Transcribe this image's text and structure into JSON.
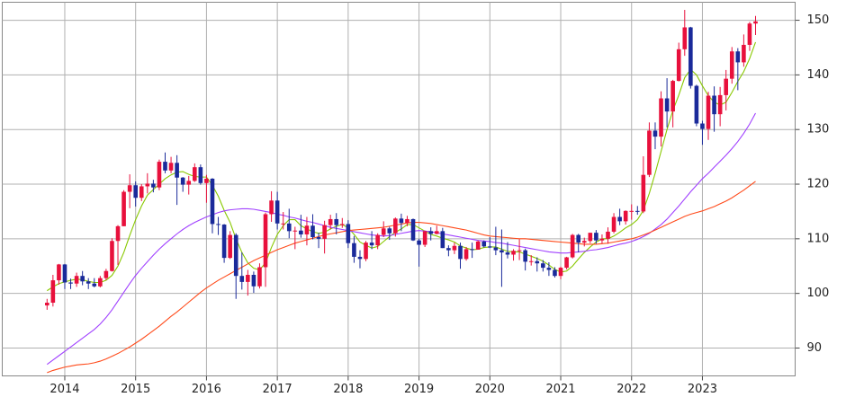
{
  "chart_data": {
    "type": "candlestick",
    "categories": [
      null,
      null,
      null,
      "2014",
      null,
      null,
      null,
      null,
      null,
      null,
      null,
      null,
      null,
      null,
      null,
      "2015",
      null,
      null,
      null,
      null,
      null,
      null,
      null,
      null,
      null,
      null,
      null,
      "2016",
      null,
      null,
      null,
      null,
      null,
      null,
      null,
      null,
      null,
      null,
      null,
      "2017",
      null,
      null,
      null,
      null,
      null,
      null,
      null,
      null,
      null,
      null,
      null,
      "2018",
      null,
      null,
      null,
      null,
      null,
      null,
      null,
      null,
      null,
      null,
      null,
      "2019",
      null,
      null,
      null,
      null,
      null,
      null,
      null,
      null,
      null,
      null,
      null,
      "2020",
      null,
      null,
      null,
      null,
      null,
      null,
      null,
      null,
      null,
      null,
      null,
      "2021",
      null,
      null,
      null,
      null,
      null,
      null,
      null,
      null,
      null,
      null,
      null,
      "2022",
      null,
      null,
      null,
      null,
      null,
      null,
      null,
      null,
      null,
      null,
      null,
      "2023",
      null,
      null,
      null,
      null,
      null,
      null,
      null,
      null,
      null
    ],
    "open": [
      97.8,
      98.3,
      102.4,
      105.3,
      102.0,
      101.8,
      103.2,
      102.2,
      101.8,
      101.3,
      102.8,
      104.1,
      109.6,
      112.3,
      118.6,
      119.8,
      117.5,
      119.6,
      120.1,
      119.4,
      124.1,
      122.5,
      123.9,
      121.2,
      119.9,
      120.6,
      123.1,
      120.2,
      121.0,
      112.7,
      112.6,
      106.5,
      110.7,
      103.2,
      102.1,
      103.4,
      101.3,
      104.8,
      114.5,
      117.0,
      112.8,
      112.8,
      111.4,
      111.5,
      110.8,
      112.4,
      110.3,
      110.0,
      112.5,
      113.6,
      112.5,
      112.7,
      109.2,
      106.7,
      106.3,
      109.3,
      108.8,
      110.7,
      111.9,
      111.0,
      113.7,
      112.9,
      113.6,
      109.7,
      108.9,
      111.4,
      110.9,
      111.4,
      108.3,
      107.9,
      108.7,
      106.3,
      108.1,
      108.0,
      109.5,
      108.6,
      108.4,
      107.9,
      107.5,
      107.1,
      107.8,
      107.9,
      105.8,
      105.9,
      105.5,
      104.7,
      104.3,
      103.2,
      104.7,
      106.6,
      110.7,
      109.3,
      109.6,
      111.1,
      109.7,
      110.0,
      111.3,
      114.0,
      113.2,
      115.1,
      115.1,
      115.0,
      121.7,
      129.8,
      128.7,
      135.7,
      133.3,
      138.9,
      144.7,
      148.7,
      138.0,
      131.1,
      130.1,
      136.2,
      132.8,
      136.3,
      139.3,
      144.3,
      142.3,
      145.5,
      149.4
    ],
    "high": [
      99.0,
      103.4,
      105.4,
      105.4,
      102.7,
      103.8,
      104.1,
      102.8,
      102.8,
      103.2,
      104.5,
      110.1,
      112.5,
      118.9,
      121.8,
      120.5,
      120.0,
      122.0,
      120.8,
      124.5,
      125.8,
      125.0,
      125.3,
      121.3,
      121.5,
      123.8,
      123.6,
      121.7,
      121.1,
      114.0,
      112.7,
      111.4,
      111.0,
      107.5,
      104.3,
      104.0,
      105.5,
      114.8,
      118.7,
      118.6,
      114.9,
      115.5,
      112.2,
      114.4,
      114.0,
      114.5,
      111.1,
      113.3,
      114.4,
      114.7,
      113.8,
      113.4,
      110.5,
      107.9,
      109.6,
      111.4,
      111.0,
      113.2,
      112.2,
      113.9,
      114.6,
      114.2,
      113.7,
      110.0,
      111.5,
      112.1,
      112.4,
      112.0,
      108.8,
      109.3,
      109.3,
      108.5,
      109.3,
      109.7,
      109.7,
      110.3,
      112.2,
      111.7,
      109.4,
      108.1,
      109.9,
      108.2,
      107.0,
      106.6,
      106.1,
      105.7,
      104.8,
      104.9,
      106.7,
      110.9,
      110.9,
      110.2,
      111.1,
      111.6,
      110.8,
      112.1,
      114.7,
      115.5,
      115.2,
      116.3,
      116.0,
      125.1,
      131.3,
      131.3,
      137.0,
      139.4,
      139.1,
      145.9,
      151.9,
      148.8,
      138.2,
      131.6,
      136.9,
      137.9,
      137.8,
      140.9,
      145.1,
      144.9,
      147.4,
      149.7,
      150.8
    ],
    "low": [
      97.0,
      97.6,
      101.6,
      100.8,
      100.8,
      101.2,
      101.5,
      100.8,
      101.1,
      101.1,
      102.4,
      104.0,
      105.2,
      112.3,
      115.6,
      115.9,
      116.9,
      118.3,
      118.5,
      118.9,
      122.0,
      122.0,
      116.2,
      118.6,
      118.1,
      120.4,
      119.9,
      116.6,
      111.0,
      110.7,
      105.6,
      106.3,
      99.0,
      100.7,
      99.6,
      100.1,
      100.9,
      101.2,
      113.1,
      111.7,
      111.7,
      110.1,
      108.1,
      110.2,
      108.8,
      109.9,
      108.3,
      107.3,
      111.7,
      110.8,
      112.0,
      108.3,
      105.6,
      104.6,
      105.9,
      108.1,
      108.1,
      110.3,
      109.8,
      110.4,
      111.4,
      112.3,
      109.6,
      104.9,
      108.5,
      109.7,
      110.8,
      108.3,
      106.8,
      107.2,
      104.5,
      106.0,
      106.5,
      108.2,
      108.4,
      108.3,
      107.0,
      101.2,
      106.4,
      106.0,
      106.1,
      104.2,
      105.1,
      104.0,
      104.0,
      103.2,
      102.9,
      102.6,
      104.4,
      106.4,
      107.5,
      108.6,
      109.2,
      109.1,
      109.1,
      109.1,
      111.0,
      112.5,
      112.6,
      113.5,
      114.4,
      114.7,
      121.3,
      126.4,
      126.9,
      130.4,
      130.4,
      138.8,
      143.5,
      137.5,
      130.6,
      127.2,
      128.1,
      129.6,
      130.6,
      133.5,
      138.4,
      137.2,
      141.5,
      144.4,
      147.3
    ],
    "close": [
      98.3,
      102.4,
      105.3,
      102.0,
      101.8,
      103.2,
      102.2,
      101.8,
      101.3,
      102.8,
      104.1,
      109.6,
      112.3,
      118.6,
      119.8,
      117.5,
      119.6,
      120.1,
      119.4,
      124.1,
      122.5,
      123.9,
      121.2,
      119.9,
      120.6,
      123.1,
      120.2,
      121.0,
      112.7,
      112.6,
      106.5,
      110.7,
      103.2,
      102.1,
      103.4,
      101.3,
      104.8,
      114.5,
      117.0,
      112.8,
      112.8,
      111.4,
      111.5,
      110.8,
      112.4,
      110.3,
      110.0,
      112.5,
      113.6,
      112.5,
      112.7,
      109.2,
      106.7,
      106.3,
      109.3,
      108.8,
      110.7,
      111.9,
      111.0,
      113.7,
      112.9,
      113.6,
      109.7,
      108.9,
      111.4,
      110.9,
      111.4,
      108.3,
      107.9,
      108.7,
      106.3,
      108.1,
      108.0,
      109.5,
      108.6,
      108.4,
      107.9,
      107.5,
      107.1,
      107.8,
      107.9,
      105.8,
      105.9,
      105.5,
      104.7,
      104.3,
      103.2,
      104.7,
      106.6,
      110.7,
      109.3,
      109.6,
      111.1,
      109.7,
      110.0,
      111.3,
      114.0,
      113.2,
      115.1,
      115.1,
      115.0,
      121.7,
      129.8,
      128.7,
      135.7,
      133.3,
      138.9,
      144.7,
      148.7,
      138.0,
      131.1,
      130.1,
      136.2,
      132.8,
      136.3,
      139.3,
      144.3,
      142.3,
      145.5,
      149.4,
      149.8
    ],
    "up_color": "#e8103c",
    "down_color": "#1a2a9a",
    "series": [
      {
        "color": "#88c800",
        "values": [
          100.5,
          101.2,
          101.8,
          102.1,
          102.4,
          102.6,
          102.5,
          102.2,
          102,
          102,
          102.4,
          103.3,
          105,
          107.5,
          110.6,
          113.5,
          116,
          118,
          119,
          120,
          121,
          121.7,
          122.2,
          122.3,
          121.8,
          121.4,
          121.3,
          121.3,
          119.8,
          117.8,
          115.2,
          113,
          110,
          107.5,
          105.6,
          104.6,
          104.3,
          105.6,
          108.4,
          110.8,
          112.4,
          113.5,
          113.5,
          112.4,
          111.8,
          111.3,
          111,
          111.2,
          111.8,
          112.3,
          112.6,
          112,
          110.8,
          109.4,
          108.8,
          108.3,
          108.6,
          109.5,
          110.4,
          111.2,
          111.8,
          112.6,
          112.6,
          112,
          111.4,
          110.8,
          110.5,
          110.1,
          109.8,
          109.4,
          108.7,
          108.3,
          108,
          108.1,
          108.4,
          108.5,
          108.5,
          108.1,
          107.7,
          107.6,
          107.6,
          107.2,
          106.8,
          106.4,
          105.9,
          105.2,
          104.4,
          103.9,
          104.1,
          105,
          106.3,
          107.5,
          108.5,
          109.4,
          110,
          110,
          110.5,
          111.2,
          112,
          112.6,
          113.5,
          115.2,
          118.3,
          122,
          126,
          130,
          133.5,
          136.3,
          139.5,
          141,
          140,
          138,
          136.2,
          135,
          134.5,
          135,
          136.8,
          138.8,
          140.6,
          143,
          146
        ]
      },
      {
        "color": "#a040ff",
        "values": [
          87,
          87.8,
          88.6,
          89.4,
          90.2,
          91,
          91.8,
          92.6,
          93.4,
          94.4,
          95.6,
          97,
          98.6,
          100.2,
          101.8,
          103.3,
          104.6,
          105.8,
          107,
          108.1,
          109.1,
          110,
          110.9,
          111.7,
          112.4,
          113,
          113.5,
          114,
          114.4,
          114.8,
          115.1,
          115.3,
          115.4,
          115.5,
          115.5,
          115.4,
          115.2,
          115,
          114.8,
          114.5,
          114.3,
          114,
          113.8,
          113.5,
          113.2,
          113,
          112.7,
          112.4,
          112.1,
          111.9,
          111.7,
          111.5,
          111.3,
          111.1,
          110.9,
          110.7,
          110.6,
          110.5,
          110.6,
          110.8,
          111,
          111.2,
          111.4,
          111.5,
          111.4,
          111.3,
          111.1,
          110.9,
          110.7,
          110.5,
          110.3,
          110.1,
          109.9,
          109.7,
          109.6,
          109.5,
          109.3,
          109.2,
          109,
          108.8,
          108.6,
          108.4,
          108.2,
          108,
          107.8,
          107.6,
          107.5,
          107.4,
          107.4,
          107.5,
          107.6,
          107.7,
          107.9,
          108,
          108.2,
          108.4,
          108.7,
          109,
          109.2,
          109.5,
          109.9,
          110.4,
          111,
          111.8,
          112.6,
          113.6,
          114.8,
          116,
          117.3,
          118.6,
          119.8,
          121,
          122,
          123.1,
          124.2,
          125.3,
          126.5,
          127.8,
          129.3,
          131,
          133
        ]
      },
      {
        "color": "#ff4a1a",
        "values": [
          85.5,
          85.9,
          86.2,
          86.5,
          86.7,
          86.9,
          87,
          87.1,
          87.3,
          87.6,
          88,
          88.5,
          89,
          89.6,
          90.2,
          90.9,
          91.6,
          92.4,
          93.2,
          94,
          94.9,
          95.8,
          96.6,
          97.5,
          98.4,
          99.3,
          100.2,
          101,
          101.7,
          102.4,
          103,
          103.6,
          104.2,
          104.8,
          105.4,
          106,
          106.5,
          107,
          107.5,
          108,
          108.4,
          108.8,
          109.2,
          109.5,
          109.8,
          110.1,
          110.4,
          110.7,
          110.9,
          111.1,
          111.3,
          111.5,
          111.6,
          111.7,
          111.8,
          111.9,
          112,
          112.1,
          112.3,
          112.5,
          112.7,
          112.9,
          113,
          113,
          112.9,
          112.8,
          112.6,
          112.4,
          112.2,
          112,
          111.8,
          111.6,
          111.3,
          111,
          110.7,
          110.5,
          110.4,
          110.3,
          110.2,
          110.1,
          110,
          110,
          109.9,
          109.8,
          109.7,
          109.6,
          109.5,
          109.4,
          109.3,
          109.2,
          109.1,
          109,
          109,
          109,
          109.1,
          109.2,
          109.4,
          109.6,
          109.8,
          110,
          110.3,
          110.7,
          111.1,
          111.6,
          112.1,
          112.6,
          113.1,
          113.6,
          114.1,
          114.5,
          114.8,
          115.1,
          115.5,
          115.9,
          116.4,
          116.9,
          117.5,
          118.2,
          118.9,
          119.7,
          120.5
        ]
      }
    ],
    "ylim": [
      84.9,
      153.3
    ],
    "yticks": [
      90,
      100,
      110,
      120,
      130,
      140,
      150
    ],
    "y_axis_side": "right",
    "grid": true
  }
}
